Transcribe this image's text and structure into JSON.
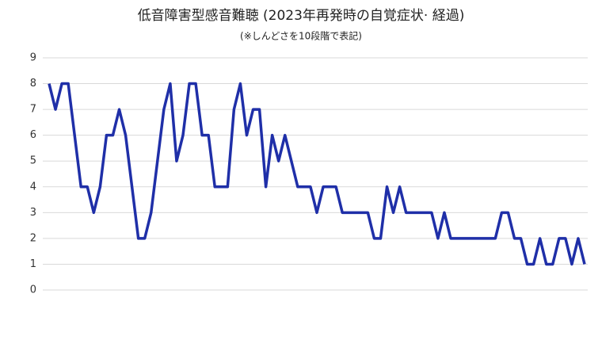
{
  "chart_data": {
    "type": "line",
    "title": "低音障害型感音難聴 (2023年再発時の自覚症状· 経過)",
    "subtitle": "(※しんどさを10段階で表記)",
    "categories": [
      null,
      null,
      null,
      null,
      null,
      null,
      null,
      null,
      null,
      null,
      null,
      null,
      null,
      null,
      null,
      null,
      null,
      null,
      null,
      null,
      null,
      null,
      null,
      null,
      null,
      null,
      null,
      null,
      null,
      null,
      null,
      null,
      null,
      null,
      null,
      null,
      null,
      null,
      null,
      null,
      null,
      null,
      null,
      null,
      null,
      null,
      null,
      null,
      null,
      null,
      null,
      null,
      null,
      null,
      null,
      null,
      null,
      null,
      null,
      null,
      null,
      null,
      null,
      null,
      null,
      null,
      null,
      null,
      null,
      null,
      null,
      null,
      null,
      null,
      null,
      null,
      null,
      null,
      null,
      null,
      null,
      null,
      null,
      null,
      null
    ],
    "values": [
      8,
      7,
      8,
      8,
      6,
      4,
      4,
      3,
      4,
      6,
      6,
      7,
      6,
      4,
      2,
      2,
      3,
      5,
      7,
      8,
      5,
      6,
      8,
      8,
      6,
      6,
      4,
      4,
      4,
      7,
      8,
      6,
      7,
      7,
      4,
      6,
      5,
      6,
      5,
      4,
      4,
      4,
      3,
      4,
      4,
      4,
      3,
      3,
      3,
      3,
      3,
      2,
      2,
      4,
      3,
      4,
      3,
      3,
      3,
      3,
      3,
      2,
      3,
      2,
      2,
      2,
      2,
      2,
      2,
      2,
      2,
      3,
      3,
      2,
      2,
      1,
      1,
      2,
      1,
      1,
      2,
      2,
      1,
      2,
      1
    ],
    "color": "#1f2fa8",
    "ylim": [
      0,
      9
    ],
    "yticks": [
      0,
      1,
      2,
      3,
      4,
      5,
      6,
      7,
      8,
      9
    ],
    "grid": true
  }
}
